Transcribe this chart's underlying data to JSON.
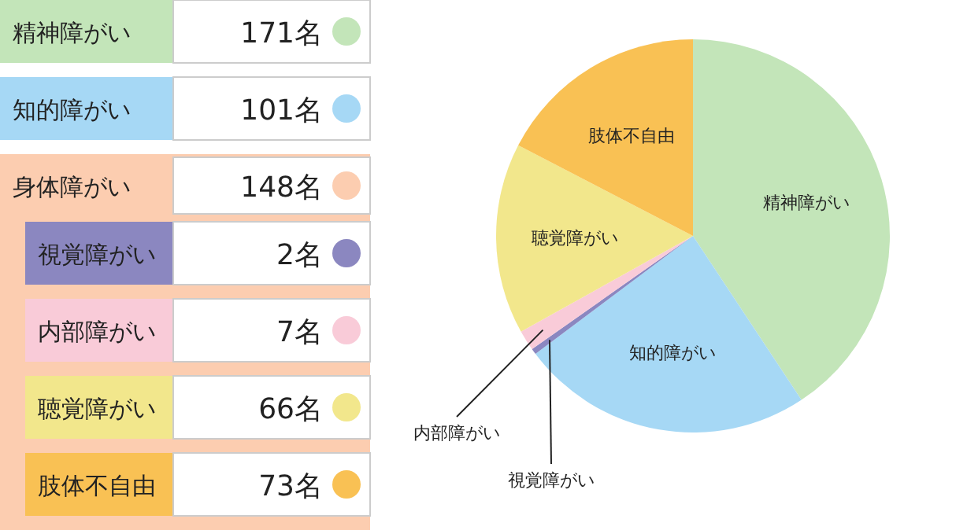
{
  "chart_data": [
    {
      "type": "other",
      "annotations": [
        "精神障がい",
        "171名",
        "知的障がい",
        "101名",
        "身体障がい",
        "148名",
        "視覚障がい",
        "2名",
        "内部障がい",
        "7名",
        "聴覚障がい",
        "66名",
        "肢体不自由",
        "73名"
      ],
      "colors": [
        "#c3e5b9",
        "#a6d8f5",
        "#fccdb0",
        "#8b87c0",
        "#f9cbd8",
        "#f2e78c",
        "#f9c154"
      ]
    },
    {
      "type": "pie",
      "categories": [
        "精神障がい",
        "知的障がい",
        "視覚障がい",
        "内部障がい",
        "聴覚障がい",
        "肢体不自由"
      ],
      "values": [
        40.71,
        24.05,
        0.48,
        1.67,
        15.71,
        17.38
      ],
      "colors": [
        "#c3e5b9",
        "#a6d8f5",
        "#8b87c0",
        "#f9cbd8",
        "#f2e78c",
        "#f9c154"
      ]
    }
  ]
}
